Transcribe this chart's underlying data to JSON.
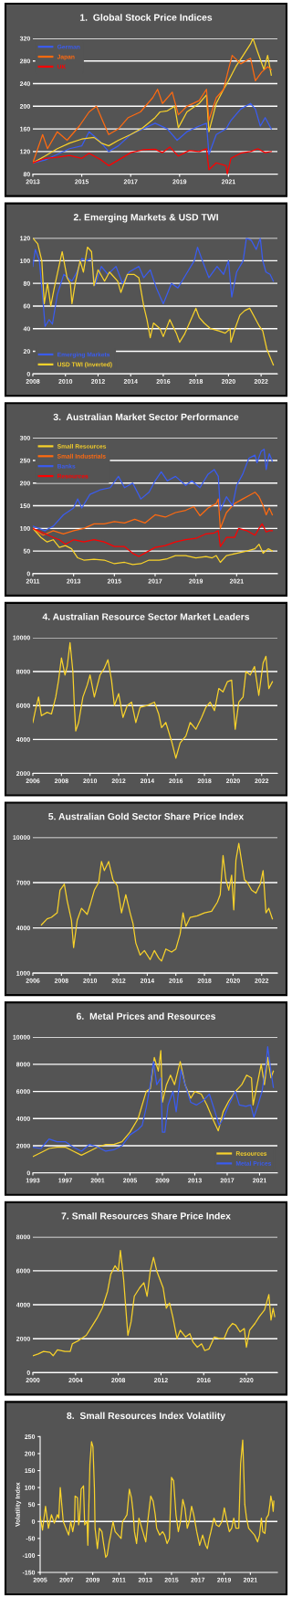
{
  "chart_data": [
    {
      "type": "line",
      "title": "1.  Global Stock Price Indices",
      "xlim": [
        2013,
        2023
      ],
      "xticks": [
        2013,
        2015,
        2017,
        2019,
        2021
      ],
      "ylim": [
        80,
        320
      ],
      "yticks": [
        80,
        120,
        160,
        200,
        240,
        280,
        320
      ],
      "grid": "y",
      "legend": "top left",
      "series": [
        {
          "name": "German",
          "color": "#3a5cf0",
          "x": [
            2013,
            2013.5,
            2014,
            2014.5,
            2015,
            2015.3,
            2015.7,
            2016.1,
            2016.5,
            2017,
            2017.5,
            2018,
            2018.5,
            2018.9,
            2019.3,
            2019.8,
            2020.1,
            2020.2,
            2020.5,
            2020.9,
            2021.1,
            2021.5,
            2021.9,
            2022.1,
            2022.3,
            2022.5,
            2022.75
          ],
          "values": [
            100,
            105,
            115,
            125,
            130,
            155,
            140,
            120,
            130,
            150,
            160,
            170,
            160,
            140,
            155,
            165,
            170,
            115,
            150,
            160,
            175,
            195,
            205,
            195,
            165,
            180,
            160
          ]
        },
        {
          "color": "#f8d22a",
          "x": [
            2013,
            2013.5,
            2014,
            2014.5,
            2015,
            2015.5,
            2015.8,
            2016.1,
            2016.5,
            2017,
            2017.5,
            2018,
            2018.2,
            2018.5,
            2018.8,
            2018.95,
            2019.3,
            2019.8,
            2020.1,
            2020.2,
            2020.5,
            2020.8,
            2021,
            2021.3,
            2021.6,
            2021.9,
            2022,
            2022.2,
            2022.45,
            2022.6,
            2022.75
          ],
          "values": [
            100,
            112,
            125,
            135,
            142,
            145,
            135,
            130,
            140,
            150,
            162,
            180,
            190,
            192,
            200,
            162,
            190,
            205,
            220,
            155,
            205,
            230,
            245,
            270,
            290,
            310,
            320,
            295,
            265,
            290,
            255
          ]
        },
        {
          "name": "Japan",
          "color": "#ff6a10",
          "x": [
            2013,
            2013.4,
            2013.6,
            2014,
            2014.4,
            2014.9,
            2015.3,
            2015.6,
            2015.9,
            2016.1,
            2016.5,
            2016.9,
            2017.4,
            2017.9,
            2018.1,
            2018.3,
            2018.7,
            2018.95,
            2019.3,
            2019.8,
            2020.1,
            2020.2,
            2020.5,
            2020.8,
            2021,
            2021.15,
            2021.5,
            2021.9,
            2022.1,
            2022.35,
            2022.6,
            2022.75
          ],
          "values": [
            100,
            150,
            125,
            155,
            140,
            165,
            190,
            200,
            170,
            150,
            160,
            180,
            190,
            215,
            230,
            205,
            225,
            185,
            200,
            210,
            230,
            175,
            215,
            230,
            265,
            290,
            275,
            285,
            245,
            260,
            270,
            265
          ]
        },
        {
          "name": "UK",
          "color": "#ff0000",
          "x": [
            2013,
            2013.5,
            2014,
            2014.5,
            2015,
            2015.3,
            2015.8,
            2016.1,
            2016.5,
            2017,
            2017.5,
            2018,
            2018.3,
            2018.6,
            2018.95,
            2019.4,
            2019.8,
            2020.1,
            2020.2,
            2020.5,
            2020.9,
            2020.95,
            2021.1,
            2021.5,
            2021.9,
            2022.2,
            2022.5,
            2022.75
          ],
          "values": [
            100,
            108,
            110,
            113,
            108,
            117,
            105,
            95,
            105,
            118,
            123,
            124,
            118,
            128,
            112,
            122,
            120,
            125,
            88,
            100,
            95,
            80,
            108,
            117,
            120,
            125,
            118,
            120
          ]
        }
      ]
    },
    {
      "type": "line",
      "title": "2. Emerging Markets & USD TWI",
      "xlim": [
        2008,
        2023
      ],
      "xticks": [
        2008,
        2010,
        2012,
        2014,
        2016,
        2018,
        2020,
        2022
      ],
      "ylim": [
        0,
        120
      ],
      "yticks": [
        0,
        20,
        40,
        60,
        80,
        100,
        120
      ],
      "grid": "y",
      "legend": "bottom left",
      "series": [
        {
          "name": "Emerging Markets",
          "color": "#3a5cf0",
          "x": [
            2008,
            2008.15,
            2008.4,
            2008.65,
            2008.75,
            2009,
            2009.2,
            2009.5,
            2009.9,
            2010.4,
            2010.7,
            2011,
            2011.3,
            2011.6,
            2011.8,
            2012.2,
            2012.6,
            2013.1,
            2013.5,
            2013.9,
            2014.5,
            2014.8,
            2015.2,
            2015.6,
            2016,
            2016.5,
            2016.9,
            2017.4,
            2017.9,
            2018.1,
            2018.4,
            2018.8,
            2019.3,
            2019.7,
            2020,
            2020.2,
            2020.5,
            2020.9,
            2021.1,
            2021.4,
            2021.7,
            2021.95,
            2022.1,
            2022.3,
            2022.55,
            2022.75
          ],
          "values": [
            95,
            110,
            100,
            60,
            42,
            48,
            44,
            70,
            88,
            82,
            90,
            102,
            100,
            102,
            78,
            95,
            88,
            95,
            80,
            90,
            95,
            85,
            92,
            75,
            62,
            80,
            76,
            88,
            100,
            112,
            100,
            85,
            95,
            88,
            100,
            68,
            90,
            100,
            120,
            118,
            110,
            120,
            100,
            90,
            88,
            82
          ]
        },
        {
          "name": "USD TWI (Inverted)",
          "color": "#f8d22a",
          "x": [
            2008,
            2008.3,
            2008.55,
            2008.7,
            2008.9,
            2009.1,
            2009.3,
            2009.6,
            2009.8,
            2010.1,
            2010.3,
            2010.4,
            2010.6,
            2010.9,
            2011.1,
            2011.35,
            2011.6,
            2011.75,
            2012,
            2012.4,
            2012.7,
            2013.2,
            2013.4,
            2013.8,
            2014.2,
            2014.5,
            2014.8,
            2015,
            2015.2,
            2015.4,
            2015.8,
            2016,
            2016.4,
            2016.8,
            2017,
            2017.3,
            2017.7,
            2018,
            2018.2,
            2018.5,
            2018.9,
            2019.4,
            2019.8,
            2020.1,
            2020.15,
            2020.4,
            2020.7,
            2021,
            2021.3,
            2021.6,
            2021.9,
            2022.1,
            2022.35,
            2022.55,
            2022.75
          ],
          "values": [
            120,
            115,
            100,
            62,
            80,
            60,
            75,
            95,
            108,
            85,
            80,
            62,
            80,
            100,
            90,
            112,
            108,
            78,
            92,
            82,
            90,
            82,
            72,
            88,
            88,
            85,
            60,
            48,
            32,
            45,
            40,
            33,
            48,
            36,
            28,
            35,
            48,
            58,
            50,
            45,
            40,
            38,
            36,
            40,
            28,
            40,
            52,
            56,
            58,
            50,
            42,
            38,
            22,
            15,
            8
          ]
        }
      ]
    },
    {
      "type": "line",
      "title": "3.  Australian Market Sector Performance",
      "xlim": [
        2011,
        2023
      ],
      "xticks": [
        2011,
        2013,
        2015,
        2017,
        2019,
        2021
      ],
      "ylim": [
        0,
        300
      ],
      "yticks": [
        0,
        50,
        100,
        150,
        200,
        250,
        300
      ],
      "grid": "y",
      "legend": "top left",
      "series": [
        {
          "name": "Small Resources",
          "color": "#f8d22a",
          "x": [
            2011,
            2011.2,
            2011.4,
            2011.7,
            2012,
            2012.3,
            2012.6,
            2012.9,
            2013.2,
            2013.5,
            2014,
            2014.5,
            2015,
            2015.5,
            2015.9,
            2016.3,
            2016.7,
            2017.2,
            2017.6,
            2018,
            2018.5,
            2019,
            2019.5,
            2019.8,
            2020,
            2020.2,
            2020.5,
            2021,
            2021.5,
            2021.9,
            2022.1,
            2022.3,
            2022.55,
            2022.75
          ],
          "values": [
            100,
            90,
            80,
            70,
            75,
            58,
            62,
            55,
            35,
            30,
            32,
            30,
            22,
            25,
            20,
            22,
            30,
            30,
            33,
            40,
            40,
            35,
            38,
            35,
            40,
            25,
            40,
            45,
            50,
            55,
            65,
            45,
            55,
            50
          ]
        },
        {
          "name": "Small Industrials",
          "color": "#ff6a10",
          "x": [
            2011,
            2011.5,
            2012,
            2012.5,
            2013,
            2013.5,
            2014,
            2014.5,
            2015,
            2015.5,
            2016,
            2016.5,
            2017,
            2017.5,
            2018,
            2018.5,
            2018.9,
            2019.2,
            2019.6,
            2020,
            2020.1,
            2020.2,
            2020.5,
            2020.9,
            2021.3,
            2021.7,
            2021.9,
            2022.1,
            2022.3,
            2022.45,
            2022.6,
            2022.75
          ],
          "values": [
            100,
            85,
            95,
            88,
            95,
            100,
            110,
            110,
            115,
            112,
            120,
            112,
            130,
            125,
            135,
            140,
            148,
            128,
            145,
            155,
            165,
            100,
            135,
            155,
            165,
            175,
            180,
            170,
            150,
            130,
            145,
            130
          ]
        },
        {
          "name": "Banks",
          "color": "#3a5cf0",
          "x": [
            2011,
            2011.3,
            2011.6,
            2012,
            2012.5,
            2013,
            2013.2,
            2013.4,
            2013.8,
            2014.3,
            2014.8,
            2015.2,
            2015.5,
            2015.9,
            2016.3,
            2016.7,
            2017,
            2017.3,
            2017.6,
            2018,
            2018.5,
            2018.8,
            2019.2,
            2019.6,
            2019.9,
            2020.1,
            2020.2,
            2020.5,
            2020.8,
            2021,
            2021.3,
            2021.6,
            2021.9,
            2022,
            2022.2,
            2022.35,
            2022.45,
            2022.6,
            2022.75
          ],
          "values": [
            105,
            100,
            95,
            105,
            130,
            145,
            165,
            145,
            175,
            185,
            190,
            215,
            190,
            200,
            165,
            180,
            205,
            225,
            205,
            215,
            195,
            205,
            190,
            220,
            230,
            215,
            140,
            170,
            150,
            195,
            220,
            255,
            262,
            245,
            270,
            275,
            230,
            265,
            248
          ]
        },
        {
          "name": "Resources",
          "color": "#ff0000",
          "x": [
            2011,
            2011.5,
            2012,
            2012.3,
            2012.6,
            2013,
            2013.5,
            2014,
            2014.5,
            2015,
            2015.5,
            2015.9,
            2016.2,
            2016.6,
            2017,
            2017.5,
            2018,
            2018.5,
            2019,
            2019.5,
            2019.9,
            2020.1,
            2020.2,
            2020.5,
            2020.9,
            2021.1,
            2021.5,
            2021.9,
            2022.1,
            2022.25,
            2022.45,
            2022.6,
            2022.75
          ],
          "values": [
            100,
            90,
            80,
            75,
            65,
            75,
            70,
            75,
            70,
            60,
            60,
            45,
            38,
            48,
            58,
            62,
            70,
            75,
            78,
            88,
            90,
            95,
            60,
            80,
            80,
            100,
            95,
            85,
            100,
            110,
            92,
            95,
            95
          ]
        }
      ]
    },
    {
      "type": "line",
      "title": "4. Australian Resource Sector Market Leaders",
      "xlim": [
        2006,
        2023.1
      ],
      "xticks": [
        2006,
        2008,
        2010,
        2012,
        2014,
        2016,
        2018,
        2020,
        2022
      ],
      "ylim": [
        2000,
        10000
      ],
      "yticks": [
        2000,
        4000,
        6000,
        8000,
        10000
      ],
      "grid": "y",
      "series": [
        {
          "color": "#f8d22a",
          "x": [
            2006,
            2006.2,
            2006.4,
            2006.6,
            2007,
            2007.3,
            2007.6,
            2007.8,
            2008,
            2008.25,
            2008.4,
            2008.6,
            2008.8,
            2008.9,
            2009,
            2009.2,
            2009.5,
            2009.8,
            2010,
            2010.3,
            2010.7,
            2011,
            2011.25,
            2011.5,
            2011.7,
            2012,
            2012.3,
            2012.6,
            2012.9,
            2013.2,
            2013.5,
            2014,
            2014.5,
            2014.8,
            2015,
            2015.3,
            2015.7,
            2016,
            2016.3,
            2016.7,
            2017,
            2017.4,
            2017.8,
            2018.1,
            2018.4,
            2018.7,
            2019,
            2019.3,
            2019.6,
            2019.9,
            2020.15,
            2020.4,
            2020.7,
            2020.9,
            2021.2,
            2021.5,
            2021.8,
            2022.1,
            2022.3,
            2022.5,
            2022.75
          ],
          "values": [
            5000,
            5800,
            6500,
            5400,
            5600,
            5500,
            6500,
            7500,
            8800,
            7800,
            8300,
            9700,
            8000,
            6000,
            4500,
            5000,
            6500,
            7200,
            7800,
            6500,
            7800,
            8200,
            8700,
            7500,
            6000,
            6700,
            5300,
            6000,
            6200,
            5000,
            5900,
            6000,
            6200,
            5500,
            4700,
            5000,
            3900,
            2900,
            3800,
            4200,
            5000,
            4600,
            5300,
            5900,
            6200,
            5700,
            7000,
            6800,
            7400,
            7500,
            4600,
            6200,
            6500,
            8000,
            7800,
            8300,
            6600,
            8500,
            8900,
            7000,
            7400
          ]
        }
      ]
    },
    {
      "type": "line",
      "title": "5. Australian Gold Sector Share Price Index",
      "xlim": [
        2006,
        2023.1
      ],
      "xticks": [
        2006,
        2008,
        2010,
        2012,
        2014,
        2016,
        2018,
        2020,
        2022
      ],
      "ylim": [
        1000,
        10000
      ],
      "yticks": [
        1000,
        4000,
        7000,
        10000
      ],
      "grid": "y",
      "series": [
        {
          "color": "#f8d22a",
          "x": [
            2006.6,
            2007,
            2007.3,
            2007.7,
            2007.9,
            2008.2,
            2008.4,
            2008.7,
            2008.85,
            2009.1,
            2009.4,
            2009.8,
            2010,
            2010.3,
            2010.6,
            2010.8,
            2011,
            2011.3,
            2011.6,
            2011.9,
            2012.2,
            2012.5,
            2012.8,
            2013,
            2013.2,
            2013.5,
            2013.8,
            2014.2,
            2014.5,
            2014.8,
            2015,
            2015.3,
            2015.7,
            2016,
            2016.3,
            2016.5,
            2016.7,
            2017,
            2017.5,
            2018,
            2018.5,
            2018.9,
            2019.1,
            2019.3,
            2019.5,
            2019.7,
            2019.9,
            2020.05,
            2020.2,
            2020.4,
            2020.6,
            2020.8,
            2021,
            2021.3,
            2021.6,
            2021.9,
            2022.1,
            2022.3,
            2022.5,
            2022.75
          ],
          "values": [
            4200,
            4600,
            4700,
            5000,
            6500,
            6900,
            5800,
            4500,
            2700,
            4500,
            5300,
            4900,
            5500,
            6500,
            7000,
            8400,
            7800,
            8400,
            7200,
            6800,
            5000,
            6200,
            5000,
            4300,
            3000,
            2200,
            2500,
            1900,
            2500,
            2000,
            1800,
            2600,
            2400,
            2600,
            3600,
            5000,
            4100,
            4700,
            4800,
            5000,
            5100,
            5700,
            6200,
            8800,
            7200,
            6500,
            7500,
            5200,
            8500,
            9600,
            8400,
            7200,
            7000,
            6500,
            6300,
            6900,
            7800,
            5000,
            5300,
            4600
          ]
        }
      ]
    },
    {
      "type": "line",
      "title": "6.  Metal Prices and Resources",
      "xlim": [
        1993,
        2023.2
      ],
      "xticks": [
        1993,
        1997,
        2001,
        2005,
        2009,
        2013,
        2017,
        2021
      ],
      "ylim": [
        0,
        10000
      ],
      "yticks": [
        0,
        2000,
        4000,
        6000,
        8000,
        10000
      ],
      "grid": "y",
      "legend": "bottom right",
      "series": [
        {
          "name": "Resources",
          "color": "#f8d22a",
          "x": [
            1993,
            1994,
            1995,
            1996,
            1997,
            1998,
            1999,
            2000,
            2001,
            2002,
            2003,
            2004,
            2005,
            2006,
            2007,
            2007.5,
            2008,
            2008.5,
            2008.8,
            2009,
            2009.5,
            2010,
            2010.5,
            2011.2,
            2011.8,
            2012.5,
            2013,
            2013.8,
            2014.5,
            2015.2,
            2015.9,
            2016.5,
            2017.2,
            2018,
            2018.8,
            2019.4,
            2020,
            2020.2,
            2020.7,
            2021.2,
            2021.6,
            2022,
            2022.4,
            2022.7
          ],
          "values": [
            1200,
            1500,
            1800,
            1900,
            1900,
            1600,
            1300,
            1600,
            1900,
            2100,
            2100,
            2300,
            3000,
            4000,
            6000,
            6200,
            8500,
            7500,
            9000,
            5200,
            6500,
            7200,
            6500,
            8200,
            6500,
            5500,
            6000,
            5800,
            5000,
            4000,
            3100,
            4500,
            5300,
            6000,
            6500,
            7200,
            7000,
            5000,
            6500,
            8000,
            6500,
            8500,
            7000,
            7500
          ]
        },
        {
          "name": "Metal Prices",
          "color": "#3a5cf0",
          "x": [
            1993,
            1994,
            1995,
            1996,
            1997,
            1998,
            1999,
            2000,
            2001,
            2002,
            2003,
            2004,
            2005,
            2006,
            2006.5,
            2007,
            2007.5,
            2007.9,
            2008.3,
            2008.8,
            2009,
            2009.3,
            2009.7,
            2010.3,
            2010.7,
            2011.3,
            2011.8,
            2012.5,
            2013.2,
            2014,
            2014.8,
            2015.5,
            2016,
            2016.5,
            2017.2,
            2018,
            2018.5,
            2019.3,
            2019.9,
            2020.3,
            2020.8,
            2021.3,
            2021.8,
            2022,
            2022.4,
            2022.7
          ],
          "values": [
            1900,
            1800,
            2500,
            2300,
            2300,
            1900,
            1600,
            2100,
            1900,
            1600,
            1700,
            2000,
            2800,
            3200,
            3500,
            4800,
            6500,
            8200,
            6500,
            7000,
            3000,
            3000,
            5000,
            6000,
            4500,
            7600,
            6500,
            5200,
            5000,
            5300,
            5800,
            4500,
            3500,
            4000,
            5000,
            6000,
            5000,
            4900,
            5000,
            4100,
            5000,
            6000,
            8000,
            9300,
            7500,
            6300
          ]
        }
      ]
    },
    {
      "type": "line",
      "title": "7. Small Resources Share Price Index",
      "xlim": [
        2000,
        2022.9
      ],
      "xticks": [
        2000,
        2004,
        2008,
        2012,
        2016,
        2020
      ],
      "ylim": [
        0,
        8000
      ],
      "yticks": [
        0,
        2000,
        4000,
        6000,
        8000
      ],
      "grid": "y",
      "series": [
        {
          "color": "#f8d22a",
          "x": [
            2000,
            2000.5,
            2001,
            2001.6,
            2001.9,
            2002.3,
            2003,
            2003.5,
            2003.7,
            2004.3,
            2005,
            2005.6,
            2006,
            2006.5,
            2007,
            2007.3,
            2007.7,
            2008,
            2008.2,
            2008.5,
            2008.8,
            2008.9,
            2009.2,
            2009.5,
            2010,
            2010.4,
            2010.7,
            2011,
            2011.3,
            2011.6,
            2011.9,
            2012.2,
            2012.5,
            2012.8,
            2013.1,
            2013.5,
            2013.8,
            2014.3,
            2014.7,
            2015,
            2015.4,
            2015.8,
            2016.1,
            2016.5,
            2017,
            2017.5,
            2017.9,
            2018.3,
            2018.7,
            2019,
            2019.4,
            2019.8,
            2020,
            2020.3,
            2020.8,
            2021.2,
            2021.7,
            2022.1,
            2022.3,
            2022.5,
            2022.65
          ],
          "values": [
            1000,
            1100,
            1250,
            1200,
            1000,
            1350,
            1250,
            1250,
            1700,
            1900,
            2200,
            2800,
            3200,
            3800,
            4800,
            5800,
            6300,
            6000,
            7200,
            5500,
            3000,
            2200,
            3000,
            4500,
            5000,
            5300,
            4500,
            6000,
            6800,
            6000,
            5500,
            5000,
            3800,
            4100,
            3300,
            2000,
            2500,
            2100,
            2300,
            1800,
            1500,
            1700,
            1300,
            1400,
            2100,
            2000,
            2000,
            2600,
            2900,
            2800,
            2400,
            2600,
            1500,
            2500,
            2900,
            3300,
            3700,
            4600,
            3100,
            3800,
            3300
          ]
        }
      ]
    },
    {
      "type": "line",
      "title": "8.  Small Resources Index Volatility",
      "ylabel": "Volatility Index",
      "xlim": [
        2005,
        2023.06
      ],
      "xticks": [
        2005,
        2007,
        2009,
        2011,
        2013,
        2015,
        2017,
        2019,
        2021
      ],
      "ylim": [
        -150,
        250
      ],
      "yticks": [
        -150,
        -100,
        -50,
        0,
        50,
        100,
        150,
        200,
        250
      ],
      "ref_lines": [
        {
          "axis": "y",
          "value": 0,
          "color": "#ffffff"
        }
      ],
      "series": [
        {
          "color": "#f8d22a",
          "x": [
            2005,
            2005.18,
            2005.41,
            2005.63,
            2005.86,
            2006.08,
            2006.31,
            2006.42,
            2006.53,
            2006.76,
            2007.17,
            2007.33,
            2007.48,
            2007.62,
            2007.66,
            2007.84,
            2007.93,
            2008,
            2008.12,
            2008.3,
            2008.39,
            2008.57,
            2008.63,
            2008.79,
            2008.91,
            2009.02,
            2009.13,
            2009.18,
            2009.36,
            2009.51,
            2009.7,
            2009.81,
            2009.99,
            2010.1,
            2010.26,
            2010.37,
            2010.55,
            2010.71,
            2010.94,
            2011.16,
            2011.28,
            2011.46,
            2011.61,
            2011.79,
            2011.95,
            2012.07,
            2012.18,
            2012.34,
            2012.52,
            2012.74,
            2013.04,
            2013.19,
            2013.42,
            2013.6,
            2013.76,
            2013.87,
            2014.1,
            2014.32,
            2014.48,
            2014.66,
            2014.84,
            2015,
            2015.16,
            2015.34,
            2015.52,
            2015.68,
            2015.86,
            2016.02,
            2016.2,
            2016.35,
            2016.53,
            2016.69,
            2016.92,
            2017.14,
            2017.37,
            2017.6,
            2017.73,
            2017.87,
            2018,
            2018.23,
            2018.41,
            2018.61,
            2018.84,
            2019.02,
            2019.22,
            2019.4,
            2019.58,
            2019.74,
            2019.9,
            2020.12,
            2020.26,
            2020.42,
            2020.58,
            2020.71,
            2020.87,
            2021.09,
            2021.32,
            2021.55,
            2021.7,
            2021.84,
            2021.95,
            2022.11,
            2022.22,
            2022.38,
            2022.49,
            2022.56,
            2022.67,
            2022.74,
            2022.79
          ],
          "values": [
            15,
            -25,
            45,
            -20,
            20,
            -5,
            20,
            10,
            100,
            0,
            -40,
            0,
            -30,
            0,
            75,
            70,
            -10,
            5,
            95,
            105,
            -10,
            0,
            -70,
            170,
            235,
            220,
            100,
            -20,
            -80,
            -20,
            -30,
            -60,
            -105,
            -100,
            -60,
            -40,
            0,
            -30,
            -40,
            -50,
            0,
            10,
            20,
            95,
            70,
            30,
            -30,
            -65,
            10,
            -20,
            -60,
            0,
            75,
            60,
            20,
            -20,
            -40,
            -30,
            -40,
            -65,
            -50,
            130,
            120,
            20,
            -30,
            0,
            65,
            40,
            -20,
            0,
            45,
            20,
            -30,
            -70,
            -40,
            -70,
            -80,
            -50,
            -30,
            10,
            -10,
            -15,
            0,
            40,
            0,
            -30,
            -20,
            10,
            -20,
            -20,
            170,
            240,
            50,
            10,
            -20,
            -30,
            -40,
            -60,
            -40,
            10,
            -30,
            -35,
            10,
            20,
            50,
            75,
            55,
            30,
            60
          ]
        }
      ]
    }
  ]
}
